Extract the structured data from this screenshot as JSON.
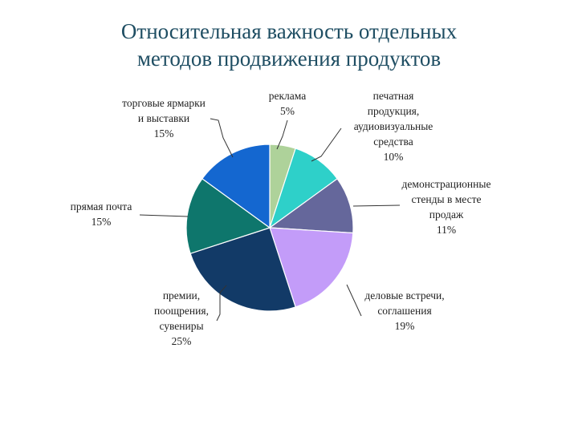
{
  "title_lines": [
    "Относительная важность отдельных",
    "методов продвижения продуктов"
  ],
  "chart_data": {
    "type": "pie",
    "title": "Относительная важность отдельных методов продвижения продуктов",
    "unit": "%",
    "start": "12 o'clock, clockwise",
    "slices": [
      {
        "label_lines": [
          "реклама"
        ],
        "value": 5,
        "value_label": "5%",
        "color": "#aed29a"
      },
      {
        "label_lines": [
          "печатная",
          "продукция,",
          "аудиовизуальные",
          "средства"
        ],
        "value": 10,
        "value_label": "10%",
        "color": "#2ed0c9"
      },
      {
        "label_lines": [
          "демонстрационные",
          "стенды в месте",
          "продаж"
        ],
        "value": 11,
        "value_label": "11%",
        "color": "#65679b"
      },
      {
        "label_lines": [
          "деловые встречи,",
          "соглашения"
        ],
        "value": 19,
        "value_label": "19%",
        "color": "#c39cf9"
      },
      {
        "label_lines": [
          "премии,",
          "поощрения,",
          "сувениры"
        ],
        "value": 25,
        "value_label": "25%",
        "color": "#123a67"
      },
      {
        "label_lines": [
          "прямая почта"
        ],
        "value": 15,
        "value_label": "15%",
        "color": "#0e766c"
      },
      {
        "label_lines": [
          "торговые ярмарки",
          "и выставки"
        ],
        "value": 15,
        "value_label": "15%",
        "color": "#1467d0"
      }
    ]
  }
}
